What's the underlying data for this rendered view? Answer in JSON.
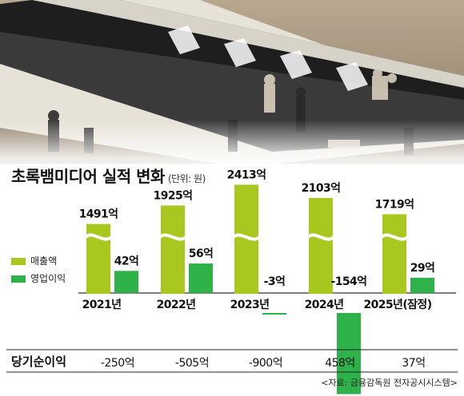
{
  "title": "초록뱀미디어 실적 변화",
  "unit": "(단위: 원)",
  "legend": [
    {
      "label": "매출액",
      "color": "#a8c820"
    },
    {
      "label": "영업이익",
      "color": "#2fb24a"
    }
  ],
  "chart_data": {
    "type": "bar",
    "categories": [
      "2021년",
      "2022년",
      "2023년",
      "2024년",
      "2025년(잠정)"
    ],
    "series": [
      {
        "name": "매출액",
        "values": [
          1491,
          1925,
          2413,
          2103,
          1719
        ],
        "labels": [
          "1491억",
          "1925억",
          "2413억",
          "2103억",
          "1719억"
        ],
        "color": "#a8c820"
      },
      {
        "name": "영업이익",
        "values": [
          42,
          56,
          -3,
          -154,
          29
        ],
        "labels": [
          "42억",
          "56억",
          "-3억",
          "-154억",
          "29억"
        ],
        "color": "#2fb24a"
      }
    ],
    "axis_break": true,
    "net_income": {
      "label": "당기순이익",
      "values": [
        -250,
        -505,
        -900,
        458,
        37
      ],
      "labels": [
        "-250억",
        "-505억",
        "-900억",
        "458억",
        "37억"
      ]
    }
  },
  "source": "<자료: 금융감독원 전자공시시스템>"
}
